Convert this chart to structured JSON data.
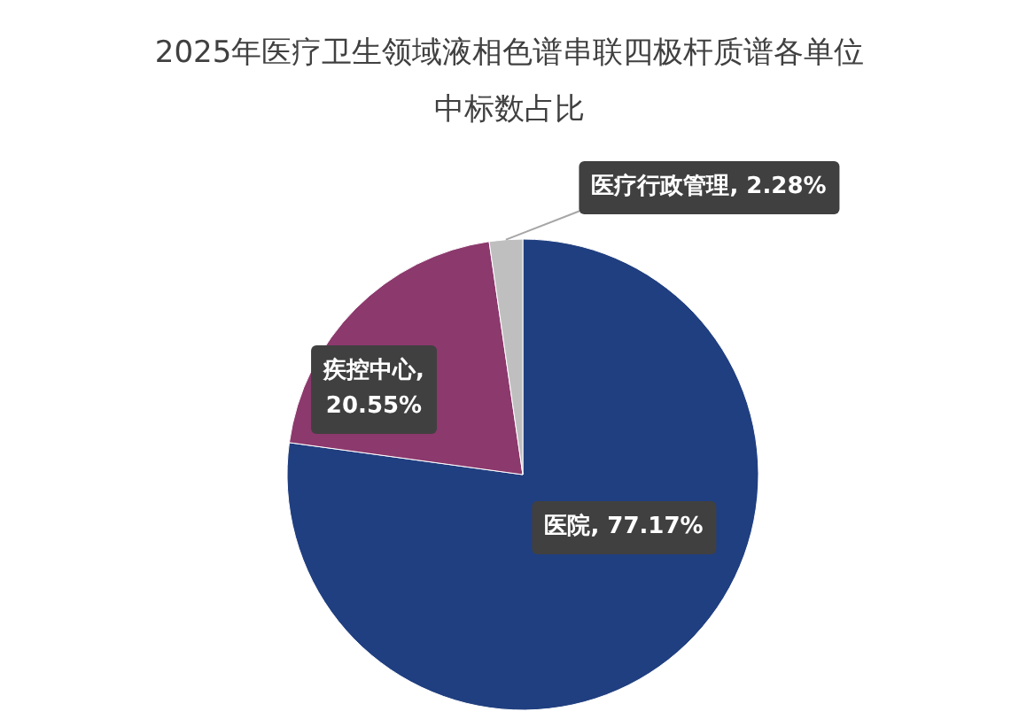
{
  "chart_data": {
    "type": "pie",
    "title": "2025年医疗卫生领域液相色谱串联四极杆质谱各单位中标数占比",
    "categories": [
      "医院",
      "疾控中心",
      "医疗行政管理"
    ],
    "values": [
      77.17,
      20.55,
      2.28
    ],
    "colors": [
      "#203f80",
      "#8c396d",
      "#bfbfbf"
    ],
    "value_labels": [
      ", 77.17%",
      ", 20.55%",
      ", 2.28%"
    ]
  }
}
